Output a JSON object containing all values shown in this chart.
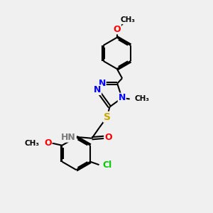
{
  "bg_color": "#f0f0f0",
  "atom_colors": {
    "N": "#0000ff",
    "O": "#ff0000",
    "S": "#ccaa00",
    "Cl": "#00cc00",
    "H": "#7a7a7a"
  },
  "bond_color": "#000000",
  "bond_width": 1.5,
  "dbo": 0.055,
  "xlim": [
    0,
    10
  ],
  "ylim": [
    0,
    10
  ]
}
